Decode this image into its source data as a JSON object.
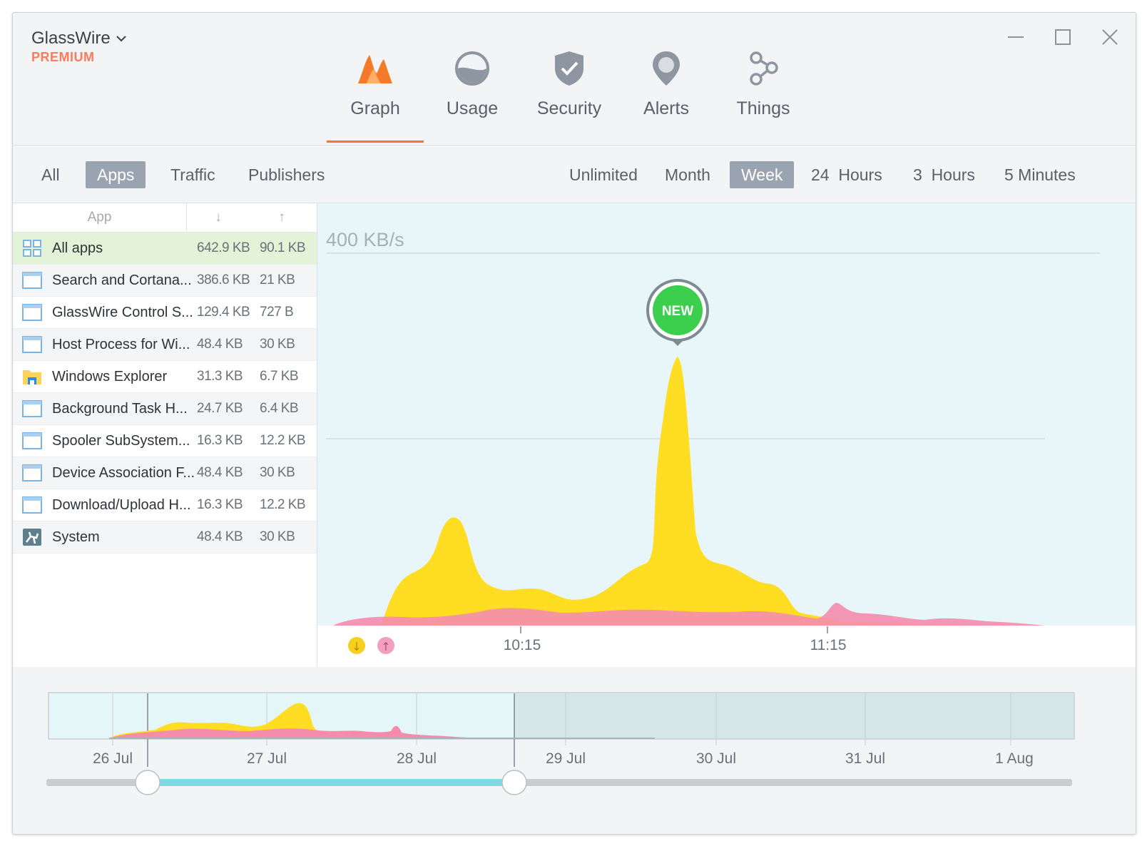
{
  "app": {
    "name": "GlassWire",
    "tier": "PREMIUM"
  },
  "nav": {
    "tabs": [
      {
        "label": "Graph",
        "icon": "graph-icon",
        "active": true
      },
      {
        "label": "Usage",
        "icon": "usage-icon",
        "active": false
      },
      {
        "label": "Security",
        "icon": "shield-icon",
        "active": false
      },
      {
        "label": "Alerts",
        "icon": "alert-pin-icon",
        "active": false
      },
      {
        "label": "Things",
        "icon": "things-icon",
        "active": false
      }
    ]
  },
  "filters": {
    "view": [
      {
        "label": "All",
        "selected": false
      },
      {
        "label": "Apps",
        "selected": true
      },
      {
        "label": "Traffic",
        "selected": false
      },
      {
        "label": "Publishers",
        "selected": false
      }
    ],
    "range": [
      {
        "label": "Unlimited",
        "selected": false
      },
      {
        "label": "Month",
        "selected": false
      },
      {
        "label": "Week",
        "selected": true
      },
      {
        "label": "24  Hours",
        "selected": false
      },
      {
        "label": "3  Hours",
        "selected": false
      },
      {
        "label": "5 Minutes",
        "selected": false
      }
    ]
  },
  "applist": {
    "header": {
      "app": "App",
      "down": "↓",
      "up": "↑"
    },
    "rows": [
      {
        "name": "All apps",
        "down": "642.9 KB",
        "up": "90.1 KB",
        "icon": "all-apps-icon",
        "selected": true
      },
      {
        "name": "Search and Cortana...",
        "down": "386.6 KB",
        "up": "21 KB",
        "icon": "window-icon"
      },
      {
        "name": "GlassWire Control S...",
        "down": "129.4 KB",
        "up": "727 B",
        "icon": "window-icon"
      },
      {
        "name": "Host Process for Wi...",
        "down": "48.4 KB",
        "up": "30 KB",
        "icon": "window-icon"
      },
      {
        "name": "Windows Explorer",
        "down": "31.3 KB",
        "up": "6.7 KB",
        "icon": "folder-icon"
      },
      {
        "name": "Background Task H...",
        "down": "24.7 KB",
        "up": "6.4 KB",
        "icon": "window-icon"
      },
      {
        "name": "Spooler SubSystem...",
        "down": "16.3 KB",
        "up": "12.2 KB",
        "icon": "window-icon"
      },
      {
        "name": "Device Association F...",
        "down": "48.4 KB",
        "up": "30 KB",
        "icon": "window-icon"
      },
      {
        "name": "Download/Upload H...",
        "down": "16.3 KB",
        "up": "12.2 KB",
        "icon": "window-icon"
      },
      {
        "name": "System",
        "down": "48.4 KB",
        "up": "30 KB",
        "icon": "system-icon"
      }
    ]
  },
  "graph": {
    "ymax_label": "400 KB/s",
    "badge": "NEW",
    "time_labels": [
      "10:15",
      "11:15"
    ],
    "legend": {
      "download_glyph": "↓",
      "upload_glyph": "↑"
    },
    "colors": {
      "download": "#ffdd22",
      "upload": "#f58cad",
      "background": "#e8f6f9",
      "badge": "#3ccf4e"
    }
  },
  "timeline": {
    "dates": [
      "26 Jul",
      "27 Jul",
      "28 Jul",
      "29 Jul",
      "30 Jul",
      "31 Jul",
      "1 Aug"
    ],
    "selection_color": "#7ddbe3"
  }
}
